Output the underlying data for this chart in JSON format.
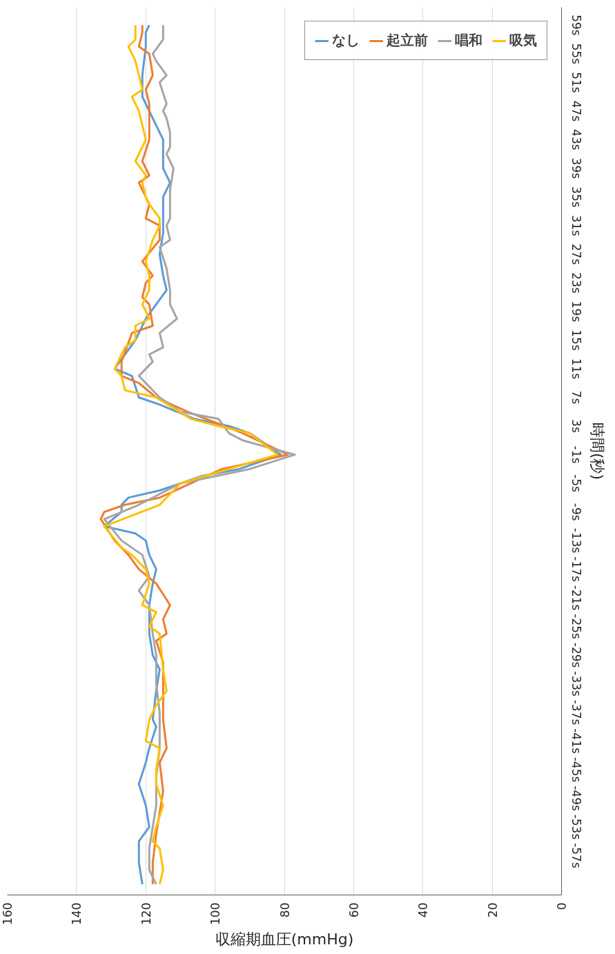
{
  "chart_data": {
    "type": "line",
    "xlabel": "収縮期血圧(mmHg)",
    "ylabel": "時間(秒)",
    "xlim": [
      160,
      0
    ],
    "ylim": [
      -62.5,
      61.5
    ],
    "xticks": [
      0,
      20,
      40,
      60,
      80,
      100,
      120,
      140,
      160
    ],
    "yticks": [
      {
        "value": -57,
        "label": "-57s"
      },
      {
        "value": -53,
        "label": "-53s"
      },
      {
        "value": -49,
        "label": "-49s"
      },
      {
        "value": -45,
        "label": "-45s"
      },
      {
        "value": -41,
        "label": "-41s"
      },
      {
        "value": -37,
        "label": "-37s"
      },
      {
        "value": -33,
        "label": "-33s"
      },
      {
        "value": -29,
        "label": "-29s"
      },
      {
        "value": -25,
        "label": "-25s"
      },
      {
        "value": -21,
        "label": "-21s"
      },
      {
        "value": -17,
        "label": "-17s"
      },
      {
        "value": -13,
        "label": "-13s"
      },
      {
        "value": -9,
        "label": "-9s"
      },
      {
        "value": -5,
        "label": "-5s"
      },
      {
        "value": -1,
        "label": "-1s"
      },
      {
        "value": 3,
        "label": "3s"
      },
      {
        "value": 7,
        "label": "7s"
      },
      {
        "value": 11,
        "label": "11s"
      },
      {
        "value": 15,
        "label": "15s"
      },
      {
        "value": 19,
        "label": "19s"
      },
      {
        "value": 23,
        "label": "23s"
      },
      {
        "value": 27,
        "label": "27s"
      },
      {
        "value": 31,
        "label": "31s"
      },
      {
        "value": 35,
        "label": "35s"
      },
      {
        "value": 39,
        "label": "39s"
      },
      {
        "value": 43,
        "label": "43s"
      },
      {
        "value": 47,
        "label": "47s"
      },
      {
        "value": 51,
        "label": "51s"
      },
      {
        "value": 55,
        "label": "55s"
      },
      {
        "value": 59,
        "label": "59s"
      }
    ],
    "grid": "x",
    "legend": "top right",
    "series": [
      {
        "name": "なし",
        "color": "#5b9bd5",
        "values": [
          -61,
          -58,
          -55,
          -53,
          -50,
          -47,
          -44,
          -42,
          -39,
          -38,
          -34,
          -31,
          -29,
          -26,
          -22,
          -19,
          -17,
          -15,
          -13,
          -12,
          -11,
          -9,
          -8,
          -7,
          -6,
          -4,
          -3,
          -1,
          2,
          3,
          4,
          6,
          7,
          10,
          11,
          13,
          15,
          18,
          20,
          22,
          24,
          27,
          30,
          32,
          35,
          37,
          39,
          43,
          45,
          47,
          49,
          52,
          56,
          58,
          59
        ],
        "x": [
          121,
          122,
          122,
          119,
          120,
          122,
          120,
          119,
          117,
          118,
          117,
          116,
          118,
          119,
          119,
          118,
          117,
          119,
          120,
          123,
          132,
          127,
          127,
          125,
          116,
          104,
          93,
          81,
          90,
          96,
          106,
          116,
          122,
          124,
          129,
          126,
          123,
          120,
          117,
          114,
          115,
          116,
          115,
          115,
          115,
          113,
          115,
          115,
          117,
          119,
          121,
          121,
          120,
          120,
          119
        ]
      },
      {
        "name": "起立前",
        "color": "#ed7d31",
        "values": [
          -61,
          -58,
          -54,
          -51,
          -48,
          -44,
          -42,
          -38,
          -34,
          -30,
          -27,
          -26,
          -24,
          -22,
          -19,
          -17,
          -15,
          -13,
          -10,
          -9,
          -8,
          -7,
          -5,
          -3,
          -1,
          2,
          5,
          7,
          9,
          10,
          12,
          16,
          17,
          20,
          21,
          23,
          24,
          26,
          29,
          31,
          32,
          34,
          37,
          38,
          40,
          43,
          48,
          50,
          52,
          55,
          56,
          58,
          59
        ],
        "x": [
          118,
          118,
          117,
          116,
          115,
          116,
          114,
          115,
          115,
          115,
          117,
          114,
          115,
          113,
          117,
          122,
          125,
          129,
          133,
          132,
          126,
          116,
          107,
          98,
          79,
          92,
          108,
          117,
          122,
          127,
          127,
          124,
          118,
          119,
          121,
          120,
          118,
          121,
          116,
          116,
          120,
          119,
          122,
          119,
          121,
          119,
          119,
          120,
          118,
          119,
          122,
          121,
          121
        ]
      },
      {
        "name": "唱和",
        "color": "#a5a5a5",
        "values": [
          -61,
          -59,
          -56,
          -53,
          -50,
          -46,
          -42,
          -37,
          -33,
          -29,
          -26,
          -22,
          -20,
          -18,
          -15,
          -13,
          -10,
          -8,
          -5,
          -3,
          -1,
          1,
          2,
          4,
          5,
          7,
          9,
          10,
          12,
          13,
          14,
          16,
          18,
          20,
          22,
          25,
          28,
          29,
          31,
          32,
          36,
          39,
          41,
          42,
          44,
          46,
          47,
          48,
          51,
          52,
          54,
          55,
          57,
          59
        ],
        "x": [
          117,
          119,
          119,
          118,
          117,
          117,
          116,
          116,
          117,
          117,
          118,
          119,
          122,
          119,
          121,
          127,
          132,
          122,
          110,
          90,
          77,
          92,
          96,
          99,
          110,
          116,
          120,
          122,
          118,
          119,
          115,
          116,
          111,
          113,
          113,
          114,
          116,
          113,
          114,
          113,
          113,
          112,
          114,
          113,
          113,
          114,
          115,
          114,
          116,
          114,
          117,
          118,
          115,
          115
        ]
      },
      {
        "name": "吸気",
        "color": "#ffc000",
        "values": [
          -61,
          -59,
          -56,
          -55,
          -53,
          -50,
          -47,
          -45,
          -42,
          -41,
          -38,
          -36,
          -34,
          -31,
          -26,
          -25,
          -23,
          -22,
          -19,
          -17,
          -15,
          -14,
          -11,
          -8,
          -5,
          -4,
          -3,
          -2,
          -1,
          2,
          3,
          4,
          7,
          8,
          10,
          11,
          13,
          14,
          15,
          17,
          18,
          20,
          22,
          24,
          26,
          29,
          31,
          32,
          34,
          35,
          37,
          38,
          40,
          42,
          43,
          47,
          49,
          50,
          52,
          54,
          56,
          57,
          59
        ],
        "x": [
          116,
          115,
          116,
          118,
          117,
          115,
          117,
          117,
          116,
          120,
          119,
          117,
          114,
          115,
          116,
          119,
          117,
          121,
          119,
          120,
          124,
          127,
          132,
          116,
          110,
          103,
          96,
          89,
          82,
          90,
          99,
          107,
          117,
          126,
          127,
          129,
          127,
          126,
          123,
          123,
          119,
          121,
          119,
          119,
          120,
          118,
          116,
          116,
          119,
          120,
          121,
          120,
          123,
          121,
          120,
          122,
          124,
          121,
          122,
          123,
          125,
          123,
          123
        ]
      }
    ]
  }
}
